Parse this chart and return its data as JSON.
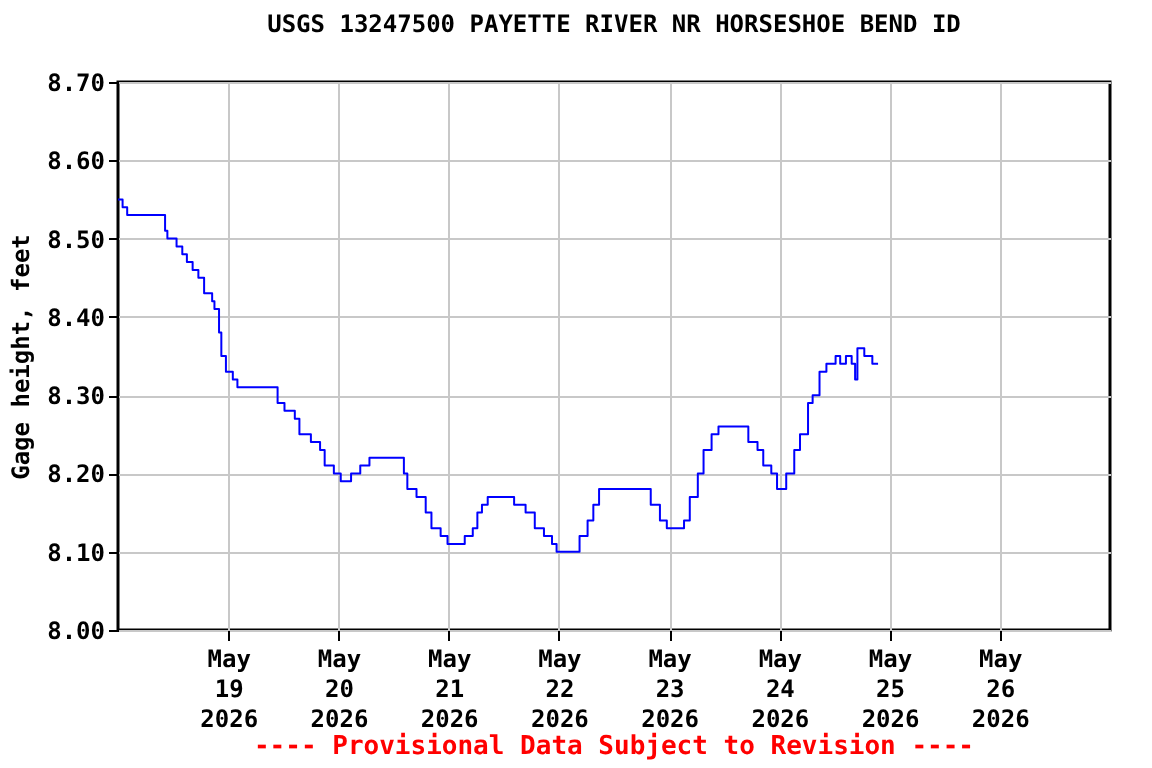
{
  "chart_data": {
    "type": "step",
    "title": "USGS 13247500 PAYETTE RIVER NR HORSESHOE BEND ID",
    "ylabel": "Gage height, feet",
    "annotations": [
      "---- Provisional Data Subject to Revision ----"
    ],
    "xlim": [
      "2026-05-18T00:00",
      "2026-05-27T00:00"
    ],
    "xticks": [
      {
        "value": "2026-05-19",
        "label": "May 19 2026"
      },
      {
        "value": "2026-05-20",
        "label": "May 20 2026"
      },
      {
        "value": "2026-05-21",
        "label": "May 21 2026"
      },
      {
        "value": "2026-05-22",
        "label": "May 22 2026"
      },
      {
        "value": "2026-05-23",
        "label": "May 23 2026"
      },
      {
        "value": "2026-05-24",
        "label": "May 24 2026"
      },
      {
        "value": "2026-05-25",
        "label": "May 25 2026"
      },
      {
        "value": "2026-05-26",
        "label": "May 26 2026"
      }
    ],
    "ylim": [
      8.0,
      8.7
    ],
    "yticks": [
      {
        "value": 8.0,
        "label": "8.00"
      },
      {
        "value": 8.1,
        "label": "8.10"
      },
      {
        "value": 8.2,
        "label": "8.20"
      },
      {
        "value": 8.3,
        "label": "8.30"
      },
      {
        "value": 8.4,
        "label": "8.40"
      },
      {
        "value": 8.5,
        "label": "8.50"
      },
      {
        "value": 8.6,
        "label": "8.60"
      },
      {
        "value": 8.7,
        "label": "8.70"
      }
    ],
    "grid": true,
    "marker": "none",
    "line_style": "solid",
    "series": [
      {
        "color": "#0000ff",
        "x": [
          "2026-05-18T00:00",
          "2026-05-18T01:00",
          "2026-05-18T02:00",
          "2026-05-18T10:15",
          "2026-05-18T10:45",
          "2026-05-18T12:45",
          "2026-05-18T14:00",
          "2026-05-18T15:00",
          "2026-05-18T16:15",
          "2026-05-18T17:30",
          "2026-05-18T18:45",
          "2026-05-18T20:30",
          "2026-05-18T21:00",
          "2026-05-18T22:00",
          "2026-05-18T22:30",
          "2026-05-18T23:30",
          "2026-05-19T01:00",
          "2026-05-19T02:00",
          "2026-05-19T10:45",
          "2026-05-19T12:15",
          "2026-05-19T14:30",
          "2026-05-19T15:30",
          "2026-05-19T18:00",
          "2026-05-19T20:00",
          "2026-05-19T21:00",
          "2026-05-19T23:00",
          "2026-05-20T00:30",
          "2026-05-20T02:45",
          "2026-05-20T04:45",
          "2026-05-20T06:45",
          "2026-05-20T09:15",
          "2026-05-20T14:15",
          "2026-05-20T15:00",
          "2026-05-20T17:00",
          "2026-05-20T19:00",
          "2026-05-20T20:15",
          "2026-05-20T22:15",
          "2026-05-20T23:45",
          "2026-05-21T01:00",
          "2026-05-21T03:30",
          "2026-05-21T05:15",
          "2026-05-21T06:15",
          "2026-05-21T07:15",
          "2026-05-21T08:30",
          "2026-05-21T14:15",
          "2026-05-21T16:45",
          "2026-05-21T18:45",
          "2026-05-21T20:45",
          "2026-05-21T22:30",
          "2026-05-21T23:30",
          "2026-05-22T04:30",
          "2026-05-22T06:15",
          "2026-05-22T07:30",
          "2026-05-22T08:45",
          "2026-05-22T18:30",
          "2026-05-22T20:00",
          "2026-05-22T22:00",
          "2026-05-22T23:30",
          "2026-05-23T03:15",
          "2026-05-23T04:30",
          "2026-05-23T06:15",
          "2026-05-23T07:30",
          "2026-05-23T09:15",
          "2026-05-23T10:45",
          "2026-05-23T17:15",
          "2026-05-23T19:15",
          "2026-05-23T20:30",
          "2026-05-23T22:15",
          "2026-05-23T23:30",
          "2026-05-24T01:30",
          "2026-05-24T03:15",
          "2026-05-24T04:30",
          "2026-05-24T06:15",
          "2026-05-24T07:15",
          "2026-05-24T08:45",
          "2026-05-24T10:15",
          "2026-05-24T12:15",
          "2026-05-24T13:15",
          "2026-05-24T14:30",
          "2026-05-24T15:45",
          "2026-05-24T16:30",
          "2026-05-24T17:00",
          "2026-05-24T18:30",
          "2026-05-24T20:15",
          "2026-05-24T21:30"
        ],
        "values": [
          8.55,
          8.54,
          8.53,
          8.51,
          8.5,
          8.49,
          8.48,
          8.47,
          8.46,
          8.45,
          8.43,
          8.42,
          8.41,
          8.38,
          8.35,
          8.33,
          8.32,
          8.31,
          8.29,
          8.28,
          8.27,
          8.25,
          8.24,
          8.23,
          8.21,
          8.2,
          8.19,
          8.2,
          8.21,
          8.22,
          8.22,
          8.2,
          8.18,
          8.17,
          8.15,
          8.13,
          8.12,
          8.11,
          8.11,
          8.12,
          8.13,
          8.15,
          8.16,
          8.17,
          8.16,
          8.15,
          8.13,
          8.12,
          8.11,
          8.1,
          8.12,
          8.14,
          8.16,
          8.18,
          8.18,
          8.16,
          8.14,
          8.13,
          8.14,
          8.17,
          8.2,
          8.23,
          8.25,
          8.26,
          8.24,
          8.23,
          8.21,
          8.2,
          8.18,
          8.2,
          8.23,
          8.25,
          8.29,
          8.3,
          8.33,
          8.34,
          8.35,
          8.34,
          8.35,
          8.34,
          8.32,
          8.36,
          8.35,
          8.34,
          8.34
        ]
      }
    ]
  }
}
